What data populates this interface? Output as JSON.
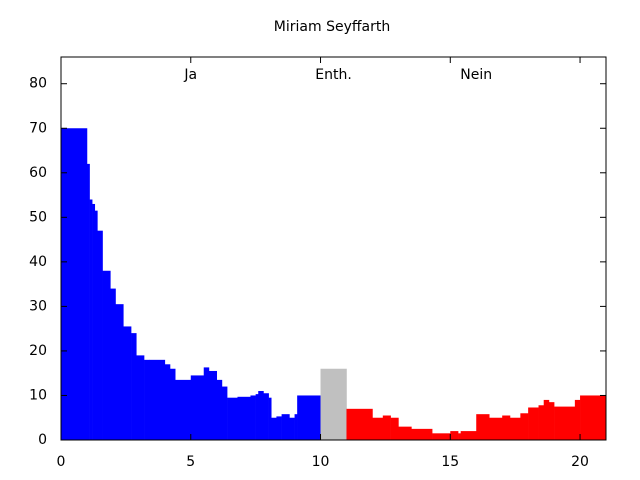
{
  "chart_data": {
    "type": "histogram",
    "title": "Miriam Seyffarth",
    "series": [
      {
        "name": "Ja",
        "color": "#0000ff",
        "bins": [
          0,
          1,
          1.1,
          1.2,
          1.3,
          1.4,
          1.6,
          1.9,
          2.1,
          2.4,
          2.7,
          2.9,
          3.2,
          3.4,
          4.0,
          4.2,
          4.4,
          5.0,
          5.5,
          5.7,
          6.0,
          6.2,
          6.4,
          6.8,
          7.3,
          7.5,
          7.6,
          7.8,
          8.0,
          8.1,
          8.3,
          8.5,
          8.8,
          9.0,
          9.1,
          10
        ],
        "values": [
          70,
          62,
          54,
          53,
          51.5,
          47,
          38,
          34,
          30.5,
          25.5,
          24,
          19,
          18,
          18,
          17,
          16,
          13.5,
          14.5,
          16.3,
          15.5,
          13.5,
          12,
          9.5,
          9.7,
          10,
          10.3,
          11,
          10.5,
          9.5,
          5,
          5.3,
          5.8,
          5,
          5.8,
          10
        ]
      },
      {
        "name": "Enth.",
        "color": "#c0c0c0",
        "bins": [
          10,
          11
        ],
        "values": [
          16
        ]
      },
      {
        "name": "Nein",
        "color": "#ff0000",
        "bins": [
          11,
          12,
          12.4,
          12.7,
          13,
          13.5,
          14.3,
          15,
          15.3,
          15.4,
          16,
          16.5,
          17,
          17.3,
          17.7,
          18,
          18.4,
          18.6,
          18.8,
          19,
          19.8,
          20,
          21
        ],
        "values": [
          7,
          5,
          5.5,
          5,
          3,
          2.5,
          1.5,
          2,
          1.5,
          2,
          5.8,
          5,
          5.5,
          5,
          6,
          7.3,
          7.8,
          9,
          8.5,
          7.5,
          9,
          10
        ]
      }
    ],
    "xlim": [
      0,
      21
    ],
    "xticks": [
      0,
      5,
      10,
      15,
      20
    ],
    "ylim": [
      0,
      86
    ],
    "yticks": [
      0,
      10,
      20,
      30,
      40,
      50,
      60,
      70,
      80
    ]
  }
}
